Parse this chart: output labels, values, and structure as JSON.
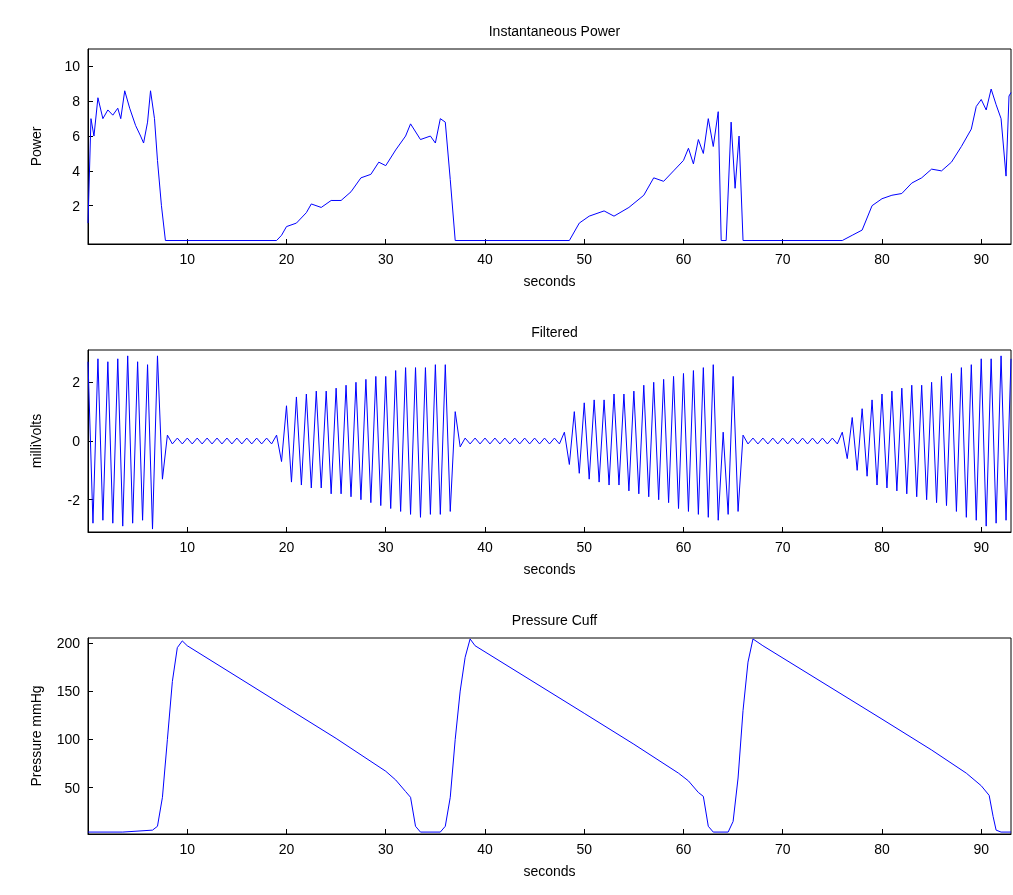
{
  "chart_data": [
    {
      "type": "line",
      "title": "Instantaneous Power",
      "xlabel": "seconds",
      "ylabel": "Power",
      "xlim": [
        0,
        93
      ],
      "xticks": [
        10,
        20,
        30,
        40,
        50,
        60,
        70,
        80,
        90
      ],
      "ylim": [
        -0.2,
        11
      ],
      "yticks": [
        2,
        4,
        6,
        8,
        10
      ],
      "x": [
        0,
        0.3,
        0.6,
        1,
        1.5,
        2,
        2.5,
        3,
        3.3,
        3.7,
        4.2,
        4.8,
        5.3,
        5.6,
        6,
        6.3,
        6.7,
        7,
        7.4,
        7.8,
        10,
        19,
        19.5,
        20,
        21,
        22,
        22.5,
        23.5,
        24.5,
        25.5,
        26.5,
        27.5,
        28.5,
        29.3,
        30,
        31,
        32,
        32.5,
        33.5,
        34.5,
        35,
        35.5,
        36,
        36.5,
        37,
        48.5,
        49.5,
        50.5,
        52,
        53,
        54.5,
        56,
        57,
        58,
        59,
        60,
        60.5,
        61,
        61.5,
        62,
        62.5,
        63,
        63.5,
        63.8,
        64.3,
        64.8,
        65.2,
        65.6,
        66,
        76,
        77,
        78,
        79,
        80,
        81,
        82,
        83,
        84,
        85,
        86,
        87,
        88,
        89,
        89.5,
        90,
        90.5,
        91,
        91.5,
        92,
        92.5,
        92.8,
        93
      ],
      "series": [
        {
          "color": "#0000ff",
          "values": [
            1,
            7,
            6,
            8.2,
            7,
            7.5,
            7.2,
            7.6,
            7,
            8.6,
            7.6,
            6.6,
            6,
            5.6,
            6.8,
            8.6,
            7,
            4.6,
            2,
            0,
            0,
            0,
            0.3,
            0.8,
            1,
            1.6,
            2.1,
            1.9,
            2.3,
            2.3,
            2.8,
            3.6,
            3.8,
            4.5,
            4.3,
            5.2,
            6,
            6.7,
            5.8,
            6,
            5.6,
            7,
            6.8,
            3.5,
            0,
            0,
            1,
            1.4,
            1.7,
            1.4,
            1.9,
            2.6,
            3.6,
            3.4,
            4,
            4.6,
            5.3,
            4.4,
            5.8,
            5,
            7,
            5.4,
            7.4,
            0,
            0,
            6.8,
            3,
            6,
            0,
            0,
            0.3,
            0.6,
            2,
            2.4,
            2.6,
            2.7,
            3.3,
            3.6,
            4.1,
            4,
            4.5,
            5.4,
            6.4,
            7.7,
            8.1,
            7.5,
            8.7,
            7.8,
            7,
            3.7,
            8.3,
            8.5
          ]
        }
      ]
    },
    {
      "type": "line",
      "title": "Filtered",
      "xlabel": "seconds",
      "ylabel": "milliVolts",
      "xlim": [
        0,
        93
      ],
      "xticks": [
        10,
        20,
        30,
        40,
        50,
        60,
        70,
        80,
        90
      ],
      "ylim": [
        -3.1,
        3.1
      ],
      "yticks": [
        -2,
        0,
        2
      ],
      "x": [
        0,
        0.5,
        1,
        1.5,
        2,
        2.5,
        3,
        3.5,
        4,
        4.5,
        5,
        5.5,
        6,
        6.5,
        7,
        7.5,
        8,
        8.5,
        9,
        9.5,
        10,
        10.5,
        11,
        11.5,
        12,
        12.5,
        13,
        13.5,
        14,
        14.5,
        15,
        15.5,
        16,
        16.5,
        17,
        17.5,
        18,
        18.5,
        19,
        19.5,
        20,
        20.5,
        21,
        21.5,
        22,
        22.5,
        23,
        23.5,
        24,
        24.5,
        25,
        25.5,
        26,
        26.5,
        27,
        27.5,
        28,
        28.5,
        29,
        29.5,
        30,
        30.5,
        31,
        31.5,
        32,
        32.5,
        33,
        33.5,
        34,
        34.5,
        35,
        35.5,
        36,
        36.5,
        37,
        37.5,
        38,
        38.5,
        39,
        39.5,
        40,
        40.5,
        41,
        41.5,
        42,
        42.5,
        43,
        43.5,
        44,
        44.5,
        45,
        45.5,
        46,
        46.5,
        47,
        47.5,
        48,
        48.5,
        49,
        49.5,
        50,
        50.5,
        51,
        51.5,
        52,
        52.5,
        53,
        53.5,
        54,
        54.5,
        55,
        55.5,
        56,
        56.5,
        57,
        57.5,
        58,
        58.5,
        59,
        59.5,
        60,
        60.5,
        61,
        61.5,
        62,
        62.5,
        63,
        63.5,
        64,
        64.5,
        65,
        65.5,
        66,
        66.5,
        67,
        67.5,
        68,
        68.5,
        69,
        69.5,
        70,
        70.5,
        71,
        71.5,
        72,
        72.5,
        73,
        73.5,
        74,
        74.5,
        75,
        75.5,
        76,
        76.5,
        77,
        77.5,
        78,
        78.5,
        79,
        79.5,
        80,
        80.5,
        81,
        81.5,
        82,
        82.5,
        83,
        83.5,
        84,
        84.5,
        85,
        85.5,
        86,
        86.5,
        87,
        87.5,
        88,
        88.5,
        89,
        89.5,
        90,
        90.5,
        91,
        91.5,
        92,
        92.5,
        93
      ],
      "series": [
        {
          "color": "#0000ff",
          "values": [
            2.7,
            -2.8,
            2.8,
            -2.7,
            2.7,
            -2.8,
            2.8,
            -2.9,
            2.9,
            -2.8,
            2.7,
            -2.7,
            2.6,
            -3,
            2.9,
            -1.3,
            0.2,
            -0.1,
            0.1,
            -0.1,
            0.1,
            -0.1,
            0.1,
            -0.1,
            0.1,
            -0.1,
            0.1,
            -0.1,
            0.1,
            -0.1,
            0.1,
            -0.1,
            0.1,
            -0.1,
            0.1,
            -0.1,
            0.1,
            -0.1,
            0.2,
            -0.7,
            1.2,
            -1.4,
            1.5,
            -1.5,
            1.6,
            -1.6,
            1.7,
            -1.6,
            1.7,
            -1.8,
            1.8,
            -1.8,
            1.9,
            -1.9,
            2,
            -2,
            2.1,
            -2.1,
            2.2,
            -2.2,
            2.2,
            -2.3,
            2.4,
            -2.4,
            2.5,
            -2.5,
            2.5,
            -2.6,
            2.5,
            -2.5,
            2.6,
            -2.5,
            2.6,
            -2.4,
            1,
            -0.2,
            0.1,
            -0.1,
            0.1,
            -0.1,
            0.1,
            -0.1,
            0.1,
            -0.1,
            0.1,
            -0.1,
            0.1,
            -0.1,
            0.1,
            -0.1,
            0.1,
            -0.1,
            0.1,
            -0.1,
            0.1,
            -0.1,
            0.3,
            -0.8,
            1,
            -1.1,
            1.3,
            -1.3,
            1.4,
            -1.4,
            1.4,
            -1.5,
            1.6,
            -1.5,
            1.6,
            -1.7,
            1.7,
            -1.8,
            1.9,
            -1.9,
            2,
            -2,
            2.1,
            -2.1,
            2.2,
            -2.3,
            2.3,
            -2.4,
            2.4,
            -2.5,
            2.5,
            -2.6,
            2.6,
            -2.7,
            0.3,
            -2.5,
            2.2,
            -2.4,
            0.2,
            -0.1,
            0.1,
            -0.1,
            0.1,
            -0.1,
            0.1,
            -0.1,
            0.1,
            -0.1,
            0.1,
            -0.1,
            0.1,
            -0.1,
            0.1,
            -0.1,
            0.1,
            -0.1,
            0.1,
            -0.1,
            0.3,
            -0.6,
            0.8,
            -1,
            1.1,
            -1.2,
            1.4,
            -1.5,
            1.6,
            -1.6,
            1.7,
            -1.7,
            1.8,
            -1.8,
            1.9,
            -1.9,
            1.9,
            -2,
            2,
            -2.1,
            2.2,
            -2.2,
            2.3,
            -2.4,
            2.5,
            -2.6,
            2.6,
            -2.7,
            2.8,
            -2.9,
            2.8,
            -2.8,
            2.9,
            -2.7,
            2.8
          ]
        }
      ]
    },
    {
      "type": "line",
      "title": "Pressure Cuff",
      "xlabel": "seconds",
      "ylabel": "Pressure mmHg",
      "xlim": [
        0,
        93
      ],
      "xticks": [
        10,
        20,
        30,
        40,
        50,
        60,
        70,
        80,
        90
      ],
      "ylim": [
        2,
        205
      ],
      "yticks": [
        50,
        100,
        150,
        200
      ],
      "x": [
        0,
        3.5,
        6.5,
        7,
        7.5,
        8,
        8.5,
        9,
        9.5,
        10,
        20,
        25,
        30,
        31,
        32,
        32.5,
        33,
        33.5,
        35.5,
        36,
        36.5,
        37,
        37.5,
        38,
        38.5,
        39,
        50,
        55,
        59.5,
        60.5,
        61.5,
        62,
        62.5,
        63,
        64.5,
        65,
        65.5,
        66,
        66.5,
        67,
        68,
        80,
        85,
        88.5,
        90,
        90.8,
        91.2,
        91.5,
        92,
        93
      ],
      "series": [
        {
          "color": "#0000ff",
          "values": [
            4,
            4,
            6,
            10,
            40,
            100,
            160,
            195,
            202,
            197,
            133,
            101,
            67,
            58,
            46,
            40,
            10,
            4,
            4,
            10,
            40,
            100,
            150,
            185,
            204,
            197,
            127,
            95,
            65,
            57,
            45,
            41,
            10,
            4,
            4,
            15,
            60,
            130,
            180,
            204,
            197,
            121,
            89,
            65,
            52,
            42,
            20,
            6,
            4,
            4
          ]
        }
      ]
    }
  ]
}
